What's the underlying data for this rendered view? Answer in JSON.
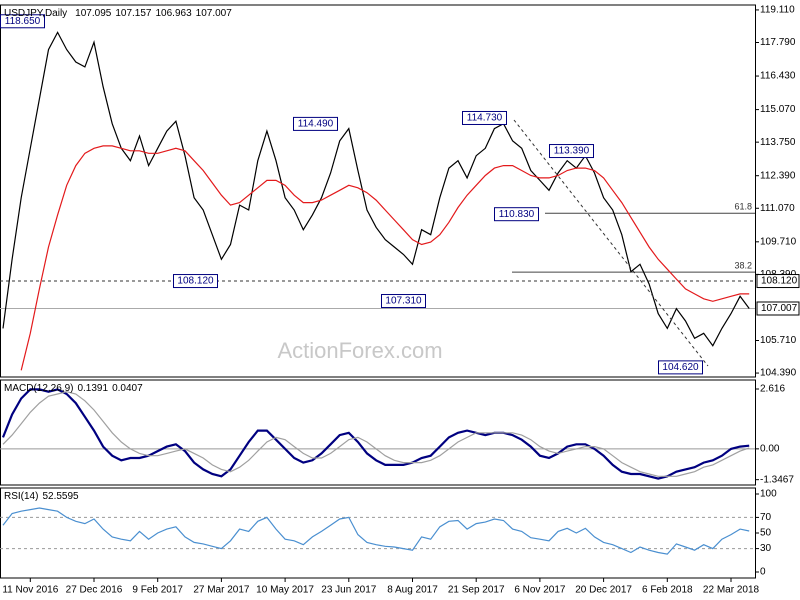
{
  "chart_data": [
    {
      "type": "line",
      "title": "USDJPY,Daily",
      "ohlc": [
        107.095,
        107.157,
        106.963,
        107.007
      ],
      "watermark": "ActionForex.com",
      "categories": [
        null,
        null,
        null,
        "11 Nov 2016",
        null,
        null,
        null,
        null,
        null,
        null,
        "27 Dec 2016",
        null,
        null,
        null,
        null,
        null,
        null,
        "9 Feb 2017",
        null,
        null,
        null,
        null,
        null,
        null,
        "27 Mar 2017",
        null,
        null,
        null,
        null,
        null,
        null,
        "10 May 2017",
        null,
        null,
        null,
        null,
        null,
        null,
        "23 Jun 2017",
        null,
        null,
        null,
        null,
        null,
        null,
        "8 Aug 2017",
        null,
        null,
        null,
        null,
        null,
        null,
        "21 Sep 2017",
        null,
        null,
        null,
        null,
        null,
        null,
        "6 Nov 2017",
        null,
        null,
        null,
        null,
        null,
        null,
        "20 Dec 2017",
        null,
        null,
        null,
        null,
        null,
        null,
        "6 Feb 2018",
        null,
        null,
        null,
        null,
        null,
        null,
        "22 Mar 2018",
        null,
        null
      ],
      "series": [
        {
          "color": "#000000",
          "values": [
            106.2,
            109.0,
            111.5,
            113.5,
            115.5,
            117.5,
            118.2,
            117.5,
            117.0,
            116.8,
            117.8,
            116.0,
            114.5,
            113.5,
            113.0,
            114.0,
            112.8,
            113.5,
            114.2,
            114.6,
            113.2,
            111.5,
            111.0,
            110.0,
            109.0,
            109.6,
            111.2,
            111.0,
            113.0,
            114.2,
            113.0,
            111.5,
            111.0,
            110.2,
            110.8,
            111.5,
            112.5,
            113.8,
            114.3,
            112.6,
            111.0,
            110.3,
            109.8,
            109.5,
            109.2,
            108.8,
            110.2,
            110.0,
            111.5,
            112.7,
            113.0,
            112.3,
            113.2,
            113.5,
            114.3,
            114.5,
            113.8,
            113.5,
            112.6,
            112.2,
            111.8,
            112.5,
            113.0,
            112.7,
            113.2,
            112.5,
            111.5,
            111.0,
            110.0,
            108.5,
            108.8,
            108.0,
            106.8,
            106.2,
            107.0,
            106.5,
            105.8,
            106.0,
            105.5,
            106.2,
            106.8,
            107.5,
            107.007
          ]
        },
        {
          "color": "#e31a1c",
          "values": [
            null,
            null,
            104.5,
            106.0,
            107.8,
            109.5,
            110.8,
            112.0,
            112.8,
            113.3,
            113.5,
            113.6,
            113.6,
            113.5,
            113.4,
            113.4,
            113.3,
            113.3,
            113.4,
            113.5,
            113.4,
            113.0,
            112.6,
            112.1,
            111.6,
            111.2,
            111.3,
            111.6,
            111.9,
            112.2,
            112.2,
            112.0,
            111.6,
            111.3,
            111.3,
            111.4,
            111.6,
            111.8,
            112.0,
            111.9,
            111.7,
            111.4,
            111.0,
            110.6,
            110.2,
            109.8,
            109.6,
            109.7,
            110.0,
            110.5,
            111.1,
            111.6,
            112.0,
            112.4,
            112.7,
            112.8,
            112.8,
            112.6,
            112.4,
            112.3,
            112.3,
            112.4,
            112.6,
            112.7,
            112.7,
            112.6,
            112.3,
            111.8,
            111.3,
            110.7,
            110.1,
            109.5,
            109.0,
            108.6,
            108.2,
            107.8,
            107.6,
            107.4,
            107.3,
            107.4,
            107.5,
            107.6,
            107.6
          ]
        }
      ],
      "ylim": [
        104.23,
        119.31
      ],
      "yticks": [
        {
          "value": 119.11,
          "label": "119.110"
        },
        {
          "value": 117.79,
          "label": "117.790"
        },
        {
          "value": 116.43,
          "label": "116.430"
        },
        {
          "value": 115.07,
          "label": "115.070"
        },
        {
          "value": 113.75,
          "label": "113.750"
        },
        {
          "value": 112.39,
          "label": "112.390"
        },
        {
          "value": 111.07,
          "label": "111.070"
        },
        {
          "value": 109.71,
          "label": "109.710"
        },
        {
          "value": 108.39,
          "label": "108.390"
        },
        {
          "value": 105.71,
          "label": "105.710"
        },
        {
          "value": 104.39,
          "label": "104.390"
        }
      ],
      "levels": [
        {
          "value": 108.12,
          "label": "108.120",
          "style": "dashed"
        },
        {
          "value": 107.007,
          "label": "107.007",
          "style": "solid"
        }
      ],
      "annotations": [
        {
          "value": 118.65,
          "label": "118.650"
        },
        {
          "value": 114.49,
          "label": "114.490"
        },
        {
          "value": 114.73,
          "label": "114.730"
        },
        {
          "value": 113.39,
          "label": "113.390"
        },
        {
          "value": 110.83,
          "label": "110.830"
        },
        {
          "value": 108.12,
          "label": "108.120"
        },
        {
          "value": 107.31,
          "label": "107.310"
        },
        {
          "value": 104.62,
          "label": "104.620"
        }
      ],
      "fib_levels": [
        {
          "value": 110.87,
          "label": "61.8"
        },
        {
          "value": 108.48,
          "label": "38.2"
        }
      ]
    },
    {
      "type": "line",
      "title": "MACD(12,26,9)",
      "readout": [
        0.1391,
        0.0407
      ],
      "series": [
        {
          "color": "#000080",
          "values": [
            0.5,
            1.5,
            2.2,
            2.6,
            2.6,
            2.5,
            2.6,
            2.4,
            2.0,
            1.4,
            0.8,
            0.1,
            -0.3,
            -0.5,
            -0.4,
            -0.4,
            -0.3,
            -0.1,
            0.1,
            0.2,
            -0.1,
            -0.6,
            -0.9,
            -1.1,
            -1.2,
            -0.9,
            -0.3,
            0.3,
            0.8,
            0.8,
            0.4,
            0.0,
            -0.4,
            -0.6,
            -0.5,
            -0.2,
            0.2,
            0.6,
            0.7,
            0.3,
            -0.2,
            -0.5,
            -0.7,
            -0.7,
            -0.7,
            -0.6,
            -0.4,
            -0.3,
            0.1,
            0.5,
            0.7,
            0.8,
            0.7,
            0.6,
            0.7,
            0.7,
            0.6,
            0.4,
            0.1,
            -0.3,
            -0.4,
            -0.2,
            0.1,
            0.2,
            0.2,
            0.0,
            -0.3,
            -0.7,
            -1.0,
            -1.1,
            -1.1,
            -1.2,
            -1.3,
            -1.2,
            -1.0,
            -0.9,
            -0.8,
            -0.6,
            -0.5,
            -0.3,
            0.0,
            0.1,
            0.1391
          ]
        },
        {
          "color": "#a0a0a0",
          "values": [
            0.2,
            0.6,
            1.1,
            1.6,
            2.0,
            2.3,
            2.4,
            2.5,
            2.4,
            2.1,
            1.7,
            1.2,
            0.7,
            0.3,
            0.0,
            -0.2,
            -0.3,
            -0.3,
            -0.2,
            -0.1,
            0.0,
            -0.2,
            -0.4,
            -0.7,
            -0.9,
            -1.0,
            -0.8,
            -0.5,
            -0.1,
            0.3,
            0.5,
            0.4,
            0.1,
            -0.2,
            -0.4,
            -0.4,
            -0.2,
            0.1,
            0.4,
            0.5,
            0.3,
            0.0,
            -0.3,
            -0.5,
            -0.6,
            -0.6,
            -0.6,
            -0.5,
            -0.3,
            0.0,
            0.3,
            0.5,
            0.7,
            0.7,
            0.7,
            0.7,
            0.7,
            0.6,
            0.4,
            0.1,
            -0.1,
            -0.2,
            -0.1,
            0.0,
            0.1,
            0.1,
            0.0,
            -0.3,
            -0.6,
            -0.8,
            -1.0,
            -1.1,
            -1.2,
            -1.2,
            -1.2,
            -1.1,
            -1.0,
            -0.8,
            -0.7,
            -0.5,
            -0.3,
            -0.1,
            0.0407
          ]
        }
      ],
      "ylim": [
        -1.58,
        3.01
      ],
      "yticks": [
        2.616,
        {
          "value": 0,
          "label": "0.00"
        },
        -1.3467
      ]
    },
    {
      "type": "line",
      "title": "RSI(14)",
      "readout": [
        52.5595
      ],
      "series": [
        {
          "color": "#4a8fd0",
          "values": [
            60,
            75,
            78,
            80,
            82,
            80,
            78,
            70,
            65,
            62,
            68,
            55,
            45,
            42,
            40,
            52,
            42,
            50,
            55,
            58,
            45,
            38,
            36,
            33,
            30,
            40,
            55,
            52,
            65,
            70,
            55,
            42,
            40,
            35,
            45,
            52,
            60,
            68,
            70,
            48,
            38,
            35,
            33,
            32,
            30,
            28,
            45,
            42,
            58,
            65,
            66,
            55,
            62,
            64,
            68,
            66,
            55,
            52,
            44,
            42,
            40,
            52,
            56,
            50,
            56,
            45,
            38,
            35,
            30,
            25,
            32,
            28,
            25,
            23,
            36,
            32,
            28,
            35,
            30,
            42,
            48,
            55,
            52.5595
          ]
        }
      ],
      "ylim": [
        -7.7,
        107.7
      ],
      "yticks": [
        100,
        70,
        50,
        30,
        0
      ],
      "dashed_levels": [
        70,
        30
      ]
    }
  ]
}
